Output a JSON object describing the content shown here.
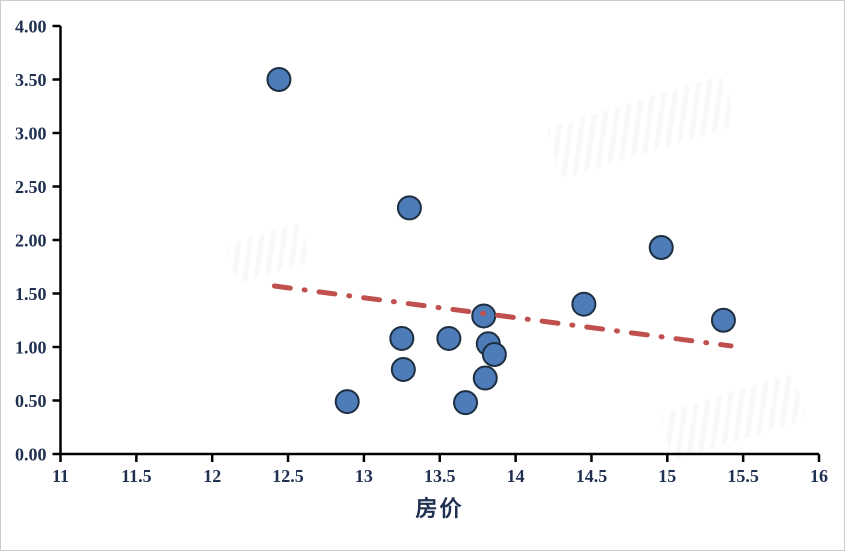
{
  "chart_data": {
    "type": "scatter",
    "title": "",
    "xlabel": "房价",
    "ylabel": "",
    "xlim": [
      11,
      16
    ],
    "ylim": [
      0,
      4
    ],
    "x_tick_labels": [
      "11",
      "11.5",
      "12",
      "12.5",
      "13",
      "13.5",
      "14",
      "14.5",
      "15",
      "15.5",
      "16"
    ],
    "y_tick_labels": [
      "0.00",
      "0.50",
      "1.00",
      "1.50",
      "2.00",
      "2.50",
      "3.00",
      "3.50",
      "4.00"
    ],
    "grid": "off",
    "legend": "none",
    "series": [
      {
        "name": "scatter-points",
        "points": [
          [
            12.44,
            3.5
          ],
          [
            13.3,
            2.3
          ],
          [
            14.96,
            1.93
          ],
          [
            14.45,
            1.4
          ],
          [
            15.37,
            1.25
          ],
          [
            13.79,
            1.29
          ],
          [
            13.25,
            1.08
          ],
          [
            13.56,
            1.08
          ],
          [
            13.82,
            1.03
          ],
          [
            13.86,
            0.93
          ],
          [
            13.26,
            0.79
          ],
          [
            13.8,
            0.71
          ],
          [
            12.89,
            0.49
          ],
          [
            13.67,
            0.48
          ]
        ]
      }
    ],
    "trendline": {
      "style": "dash-dot",
      "x1": 12.41,
      "y1": 1.57,
      "x2": 15.42,
      "y2": 1.01
    }
  },
  "style": {
    "point_fill": "#4e7cb8",
    "point_stroke": "#1e2f42",
    "trend_color": "#c0504d",
    "axis_color": "#000000",
    "tick_label_color": "#1f3050"
  }
}
